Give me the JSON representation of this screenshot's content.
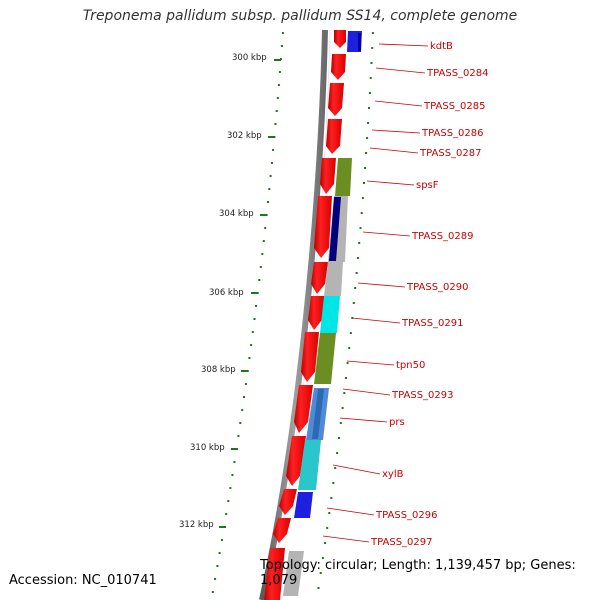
{
  "title": "Treponema pallidum subsp. pallidum SS14, complete genome",
  "accession_text": "Accession: NC_010741",
  "summary_text": "Topology: circular; Length: 1,139,457 bp; Genes: 1,079",
  "scale_labels": [
    "300 kbp",
    "302 kbp",
    "304 kbp",
    "306 kbp",
    "308 kbp",
    "310 kbp",
    "312 kbp"
  ],
  "gene_labels": [
    "kdtB",
    "TPASS_0284",
    "TPASS_0285",
    "TPASS_0286",
    "TPASS_0287",
    "spsF",
    "TPASS_0289",
    "TPASS_0290",
    "TPASS_0291",
    "tpn50",
    "TPASS_0293",
    "prs",
    "xylB",
    "TPASS_0296",
    "TPASS_0297"
  ],
  "colors": {
    "cds": "#ff0000",
    "backbone": "#808080",
    "ticks": "#1a7a1a",
    "label": "#cc0000",
    "blue": "#1f1fe0",
    "olive": "#6b8e23",
    "navy": "#00007f",
    "gray": "#b4b4b4",
    "cyan": "#00e6e6",
    "steelblue": "#4f8ad6",
    "teal": "#2ac6cc"
  }
}
